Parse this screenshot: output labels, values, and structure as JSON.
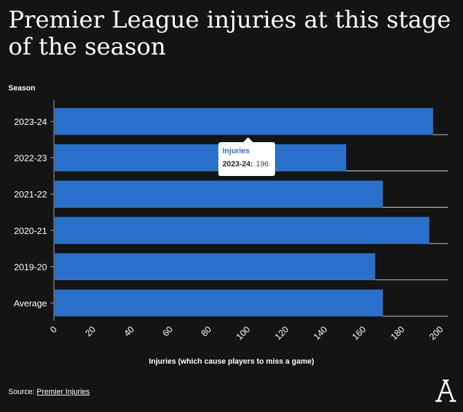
{
  "header": {
    "title": "Premier League injuries at this stage of the season"
  },
  "colors": {
    "bar": "#2a6fc9",
    "background": "#141414",
    "grid": "#ffffff"
  },
  "chart_data": {
    "type": "bar",
    "orientation": "horizontal",
    "categories": [
      "2023-24",
      "2022-23",
      "2021-22",
      "2020-21",
      "2019-20",
      "Average"
    ],
    "series": [
      {
        "name": "Injuries",
        "values": [
          196,
          151,
          170,
          194,
          166,
          170
        ]
      }
    ],
    "title": "Premier League injuries at this stage of the season",
    "xlabel": "Injuries (which cause players to miss a game)",
    "ylabel": "Season",
    "xlim": [
      0,
      200
    ],
    "xticks": [
      "0",
      "20",
      "40",
      "60",
      "80",
      "100",
      "120",
      "140",
      "160",
      "180",
      "200"
    ],
    "grid": "vertical-off, row lines on",
    "legend": "none"
  },
  "tooltip": {
    "series": "Injuries",
    "key": "2023-24:",
    "value": "196"
  },
  "footer": {
    "source_label": "Source:",
    "source_link": "Premier Injuries"
  },
  "logo": {
    "icon": "athletic-a-logo-icon"
  }
}
